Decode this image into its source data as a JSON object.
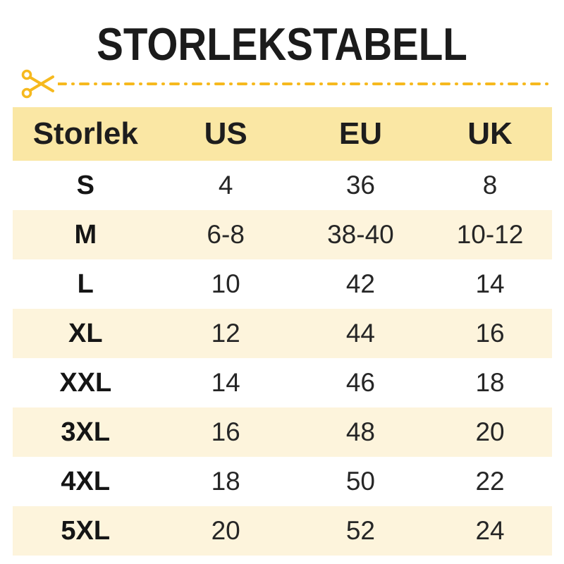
{
  "title": "STORLEKSTABELL",
  "cut_line": {
    "icon": "scissors-icon"
  },
  "colors": {
    "accent_gold": "#F6B91E",
    "header_bg": "#FAE7A4",
    "row_alt_bg": "#FDF4DC",
    "title_text": "#1B1B1B",
    "cell_text": "#262626"
  },
  "chart_data": {
    "type": "table",
    "title": "STORLEKSTABELL",
    "columns": [
      "Storlek",
      "US",
      "EU",
      "UK"
    ],
    "rows": [
      [
        "S",
        "4",
        "36",
        "8"
      ],
      [
        "M",
        "6-8",
        "38-40",
        "10-12"
      ],
      [
        "L",
        "10",
        "42",
        "14"
      ],
      [
        "XL",
        "12",
        "44",
        "16"
      ],
      [
        "XXL",
        "14",
        "46",
        "18"
      ],
      [
        "3XL",
        "16",
        "48",
        "20"
      ],
      [
        "4XL",
        "18",
        "50",
        "22"
      ],
      [
        "5XL",
        "20",
        "52",
        "24"
      ]
    ]
  }
}
